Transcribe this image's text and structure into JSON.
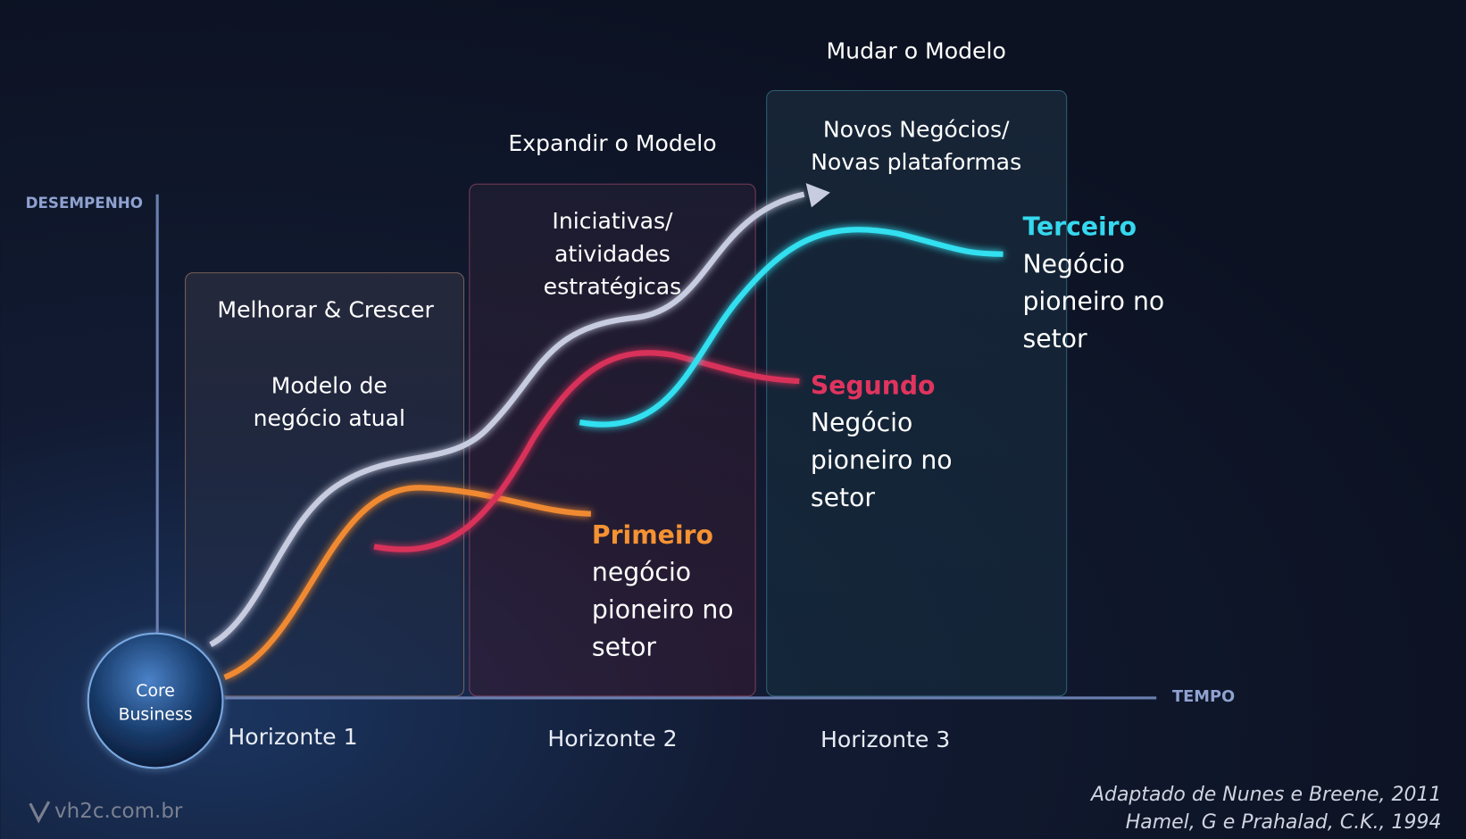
{
  "axes": {
    "y_label": "DESEMPENHO",
    "x_label": "TEMPO"
  },
  "horizons": [
    {
      "title": "Melhorar & Crescer",
      "body": [
        "Modelo de",
        "negócio atual"
      ],
      "label": "Horizonte 1"
    },
    {
      "title": "Expandir o Modelo",
      "body": [
        "Iniciativas/",
        "atividades",
        "estratégicas"
      ],
      "label": "Horizonte 2"
    },
    {
      "title": "Mudar o Modelo",
      "body": [
        "Novos Negócios/",
        "Novas plataformas"
      ],
      "label": "Horizonte 3"
    }
  ],
  "curves": [
    {
      "title": "Primeiro",
      "body": [
        "negócio",
        "pioneiro no",
        "setor"
      ]
    },
    {
      "title": "Segundo",
      "body": [
        "Negócio",
        "pioneiro no",
        "setor"
      ]
    },
    {
      "title": "Terceiro",
      "body": [
        "Negócio",
        "pioneiro no",
        "setor"
      ]
    }
  ],
  "core": [
    "Core",
    "Business"
  ],
  "watermark": "vh2c.com.br",
  "credits": [
    "Adaptado de Nunes e Breene, 2011",
    "Hamel, G e Prahalad, C.K., 1994"
  ]
}
